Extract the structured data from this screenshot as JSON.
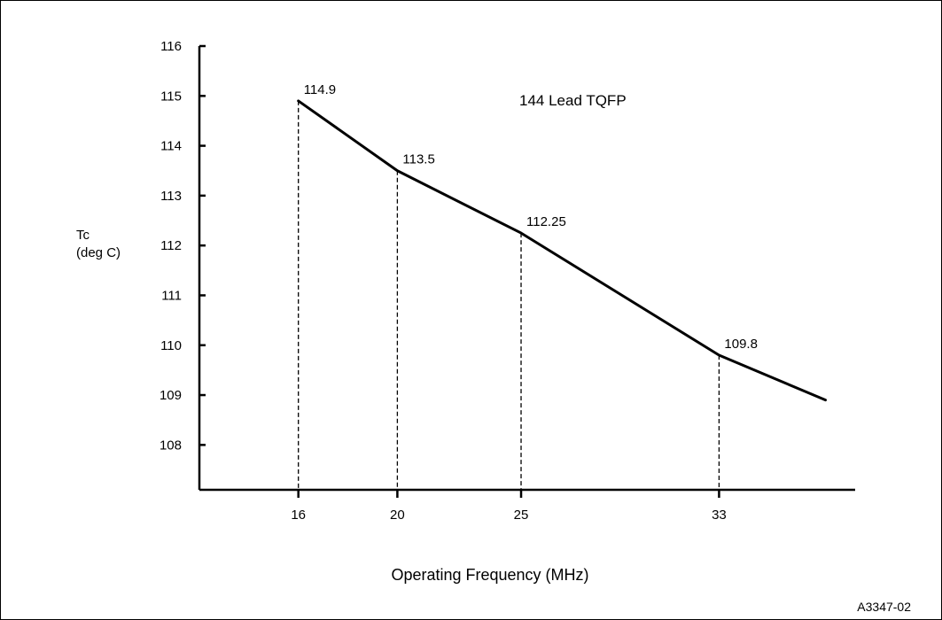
{
  "chart_data": {
    "type": "line",
    "title": "144 Lead TQFP",
    "ylabel_lines": [
      "Tc",
      "(deg C)"
    ],
    "xlabel": "Operating Frequency (MHz)",
    "figure_code": "A3347-02",
    "x_ticks": [
      16,
      20,
      25,
      33
    ],
    "y_ticks": [
      108,
      109,
      110,
      111,
      112,
      113,
      114,
      115,
      116
    ],
    "xlim": [
      12,
      38.5
    ],
    "ylim": [
      107.1,
      116
    ],
    "series": [
      {
        "x": [
          16,
          20,
          25,
          33,
          37.3
        ],
        "y": [
          114.9,
          113.5,
          112.25,
          109.8,
          108.9
        ]
      }
    ],
    "annotated_points": [
      {
        "x": 16,
        "y": 114.9,
        "label": "114.9"
      },
      {
        "x": 20,
        "y": 113.5,
        "label": "113.5"
      },
      {
        "x": 25,
        "y": 112.25,
        "label": "112.25"
      },
      {
        "x": 33,
        "y": 109.8,
        "label": "109.8"
      }
    ],
    "grid": false,
    "legend": "none"
  }
}
